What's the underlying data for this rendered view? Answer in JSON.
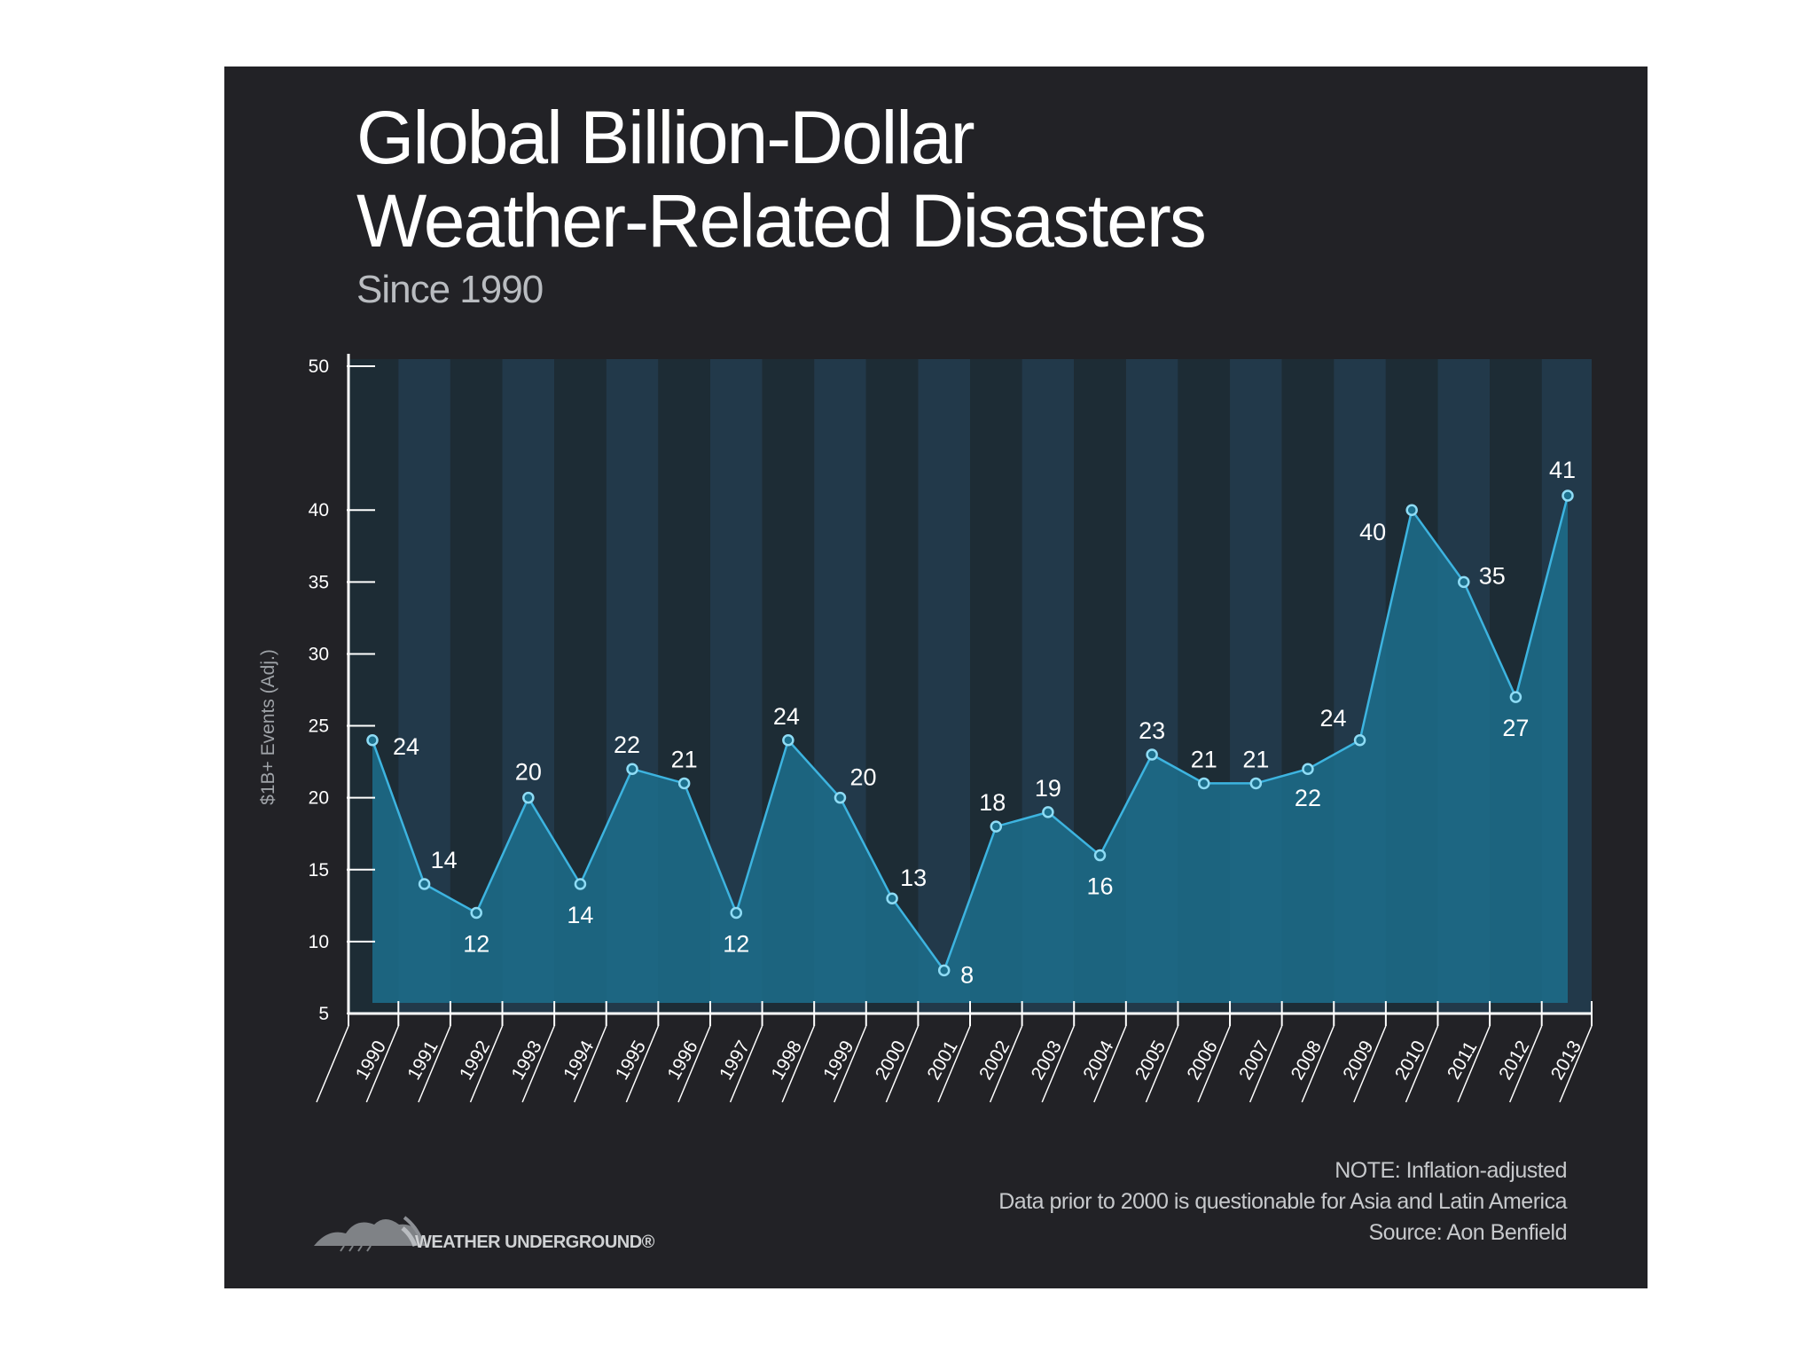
{
  "title": [
    "Global Billion-Dollar",
    "Weather-Related Disasters"
  ],
  "subtitle": "Since 1990",
  "notes": [
    "NOTE: Inflation-adjusted",
    "Data prior to 2000 is questionable for Asia and Latin America",
    "Source: Aon Benfield"
  ],
  "logo_text": "WEATHER UNDERGROUND®",
  "colors": {
    "panel": "#222226",
    "area": "#1c6f8c",
    "line": "#3db4e0",
    "stripe_a": "#1d2c35",
    "stripe_b": "#22394a"
  },
  "chart_data": {
    "type": "area",
    "title": "Global Billion-Dollar Weather-Related Disasters",
    "subtitle": "Since 1990",
    "xlabel": "",
    "ylabel": "$1B+ Events (Adj.)",
    "ylim": [
      5,
      50
    ],
    "yticks": [
      5,
      10,
      15,
      20,
      25,
      30,
      35,
      40,
      50
    ],
    "categories": [
      "1990",
      "1991",
      "1992",
      "1993",
      "1994",
      "1995",
      "1996",
      "1997",
      "1998",
      "1999",
      "2000",
      "2001",
      "2002",
      "2003",
      "2004",
      "2005",
      "2006",
      "2007",
      "2008",
      "2009",
      "2010",
      "2011",
      "2012",
      "2013"
    ],
    "values": [
      24,
      14,
      12,
      20,
      14,
      22,
      21,
      12,
      24,
      20,
      13,
      8,
      18,
      19,
      16,
      23,
      21,
      21,
      22,
      24,
      40,
      35,
      27,
      41
    ],
    "data_labels": [
      "24",
      "14",
      "12",
      "20",
      "14",
      "22",
      "21",
      "12",
      "24",
      "20",
      "13",
      "8",
      "18",
      "19",
      "16",
      "23",
      "21",
      "21",
      "22",
      "24",
      "40",
      "35",
      "27",
      "41"
    ]
  }
}
